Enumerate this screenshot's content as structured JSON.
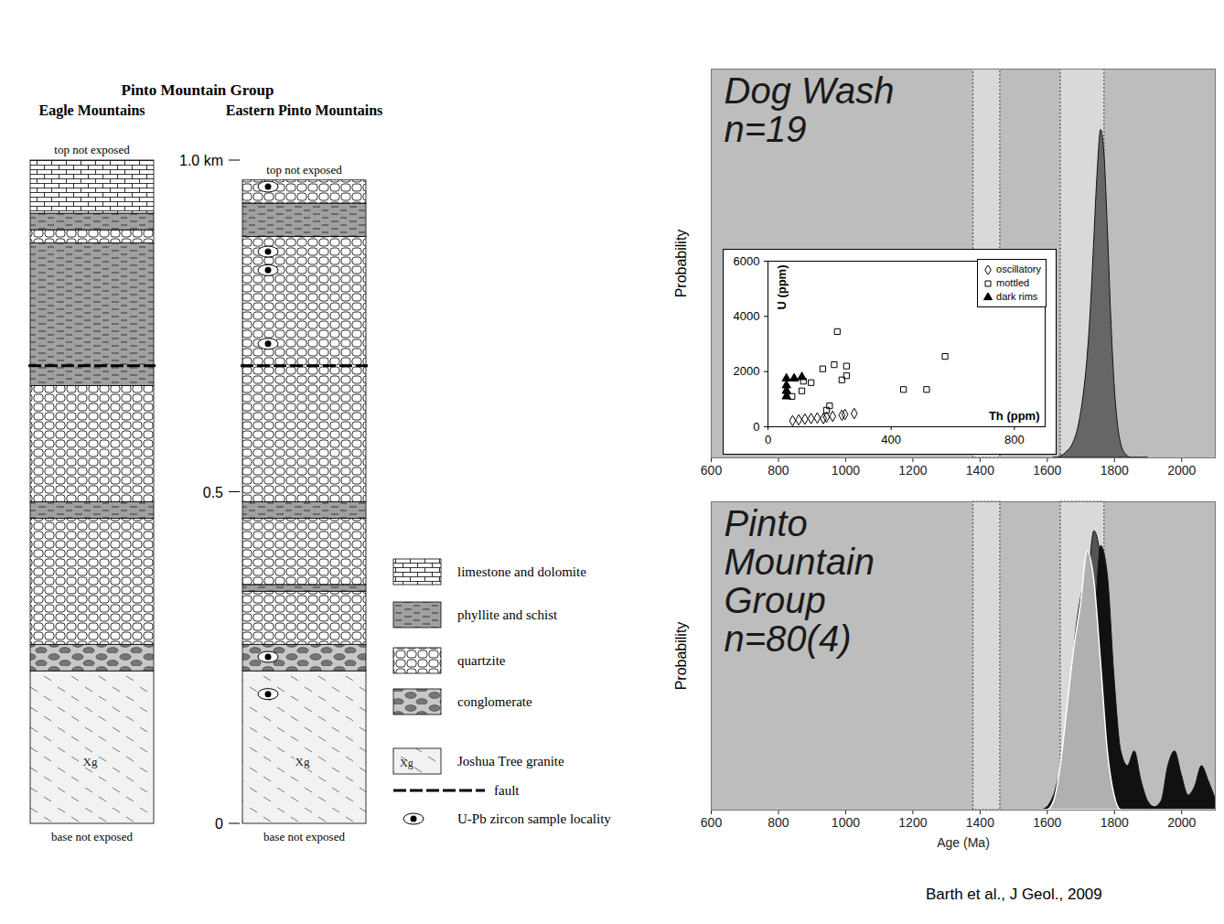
{
  "diagram": {
    "title": "Pinto Mountain Group",
    "ylim": [
      0,
      1.0
    ],
    "scale_ticks": [
      0,
      0.5,
      {
        "value": 1.0,
        "label": "1.0 km"
      }
    ],
    "columns": [
      {
        "name": "Eagle Mountains",
        "top_note": "top not exposed",
        "base_note": "base not exposed",
        "layers": [
          {
            "unit": "granite",
            "from": 0,
            "to": 0.23,
            "label": "Xg"
          },
          {
            "unit": "conglomerate",
            "from": 0.23,
            "to": 0.27
          },
          {
            "unit": "quartzite",
            "from": 0.27,
            "to": 0.46
          },
          {
            "unit": "phyllite",
            "from": 0.46,
            "to": 0.485
          },
          {
            "unit": "quartzite",
            "from": 0.485,
            "to": 0.66
          },
          {
            "unit": "phyllite",
            "from": 0.66,
            "to": 0.875
          },
          {
            "unit": "quartzite",
            "from": 0.875,
            "to": 0.895
          },
          {
            "unit": "phyllite",
            "from": 0.895,
            "to": 0.92
          },
          {
            "unit": "limestone",
            "from": 0.92,
            "to": 1.0
          }
        ],
        "faults": [
          0.69
        ],
        "samples": []
      },
      {
        "name": "Eastern Pinto Mountains",
        "top_note": "top not exposed",
        "base_note": "base not exposed",
        "layers": [
          {
            "unit": "granite",
            "from": 0,
            "to": 0.23,
            "label": "Xg"
          },
          {
            "unit": "conglomerate",
            "from": 0.23,
            "to": 0.27
          },
          {
            "unit": "quartzite",
            "from": 0.27,
            "to": 0.35
          },
          {
            "unit": "phyllite",
            "from": 0.35,
            "to": 0.36
          },
          {
            "unit": "quartzite",
            "from": 0.36,
            "to": 0.46
          },
          {
            "unit": "phyllite",
            "from": 0.46,
            "to": 0.485
          },
          {
            "unit": "quartzite",
            "from": 0.485,
            "to": 0.885
          },
          {
            "unit": "phyllite",
            "from": 0.885,
            "to": 0.935
          },
          {
            "unit": "quartzite",
            "from": 0.935,
            "to": 0.97
          }
        ],
        "faults": [
          0.69
        ],
        "samples": [
          0.96,
          0.862,
          0.834,
          0.723,
          0.251,
          0.195
        ]
      }
    ],
    "legend": [
      {
        "unit": "limestone",
        "label": "limestone and dolomite"
      },
      {
        "unit": "phyllite",
        "label": "phyllite and schist"
      },
      {
        "unit": "quartzite",
        "label": "quartzite"
      },
      {
        "unit": "conglomerate",
        "label": "conglomerate"
      },
      {
        "unit": "granite",
        "label": "Joshua Tree granite",
        "symbol": "Xg"
      },
      {
        "unit": "fault",
        "label": "fault"
      },
      {
        "unit": "sample",
        "label": "U-Pb zircon sample locality"
      }
    ]
  },
  "chart_data": [
    {
      "type": "area",
      "title": "Dog Wash",
      "subtitle": "n=19",
      "ylabel": "Probability",
      "xlim": [
        600,
        2100
      ],
      "xticks": [
        600,
        800,
        1000,
        1200,
        1400,
        1600,
        1800,
        2000
      ],
      "ylim": [
        0,
        1.15
      ],
      "tick_labels": "x",
      "highlight_ranges": [
        [
          1380,
          1460
        ],
        [
          1640,
          1770
        ]
      ],
      "color": "#666666",
      "x": [
        1620,
        1630,
        1640,
        1650,
        1660,
        1670,
        1680,
        1690,
        1700,
        1710,
        1720,
        1730,
        1740,
        1750,
        1760,
        1770,
        1780,
        1790,
        1800,
        1810,
        1820,
        1830,
        1840,
        1850,
        1860,
        1870,
        1880,
        1890,
        1900
      ],
      "values": [
        0,
        0,
        0.005,
        0.01,
        0.02,
        0.03,
        0.05,
        0.08,
        0.13,
        0.2,
        0.3,
        0.45,
        0.65,
        0.85,
        0.97,
        0.9,
        0.68,
        0.42,
        0.22,
        0.1,
        0.04,
        0.015,
        0.005,
        0,
        0,
        0,
        0,
        0,
        0
      ],
      "inset": {
        "type": "scatter",
        "xlabel": "Th (ppm)",
        "ylabel": "U (ppm)",
        "xlim": [
          0,
          900
        ],
        "xticks": [
          0,
          400,
          800
        ],
        "ylim": [
          0,
          6000
        ],
        "yticks": [
          0,
          2000,
          4000,
          6000
        ],
        "legend": "top-right",
        "series": [
          {
            "name": "oscillatory",
            "marker": "open diamond",
            "color": "#000000",
            "x": [
              80,
              100,
              120,
              140,
              160,
              180,
              190,
              210,
              240,
              250,
              280
            ],
            "values": [
              220,
              250,
              280,
              300,
              320,
              300,
              350,
              380,
              420,
              450,
              480
            ]
          },
          {
            "name": "mottled",
            "marker": "open square",
            "color": "#000000",
            "x": [
              575,
              225,
              215,
              178,
              140,
              110,
              78,
              240,
              200,
              440,
              515,
              115,
              255,
              255,
              190
            ],
            "values": [
              2550,
              3450,
              2250,
              2100,
              1600,
              1300,
              1100,
              1700,
              760,
              1350,
              1350,
              1650,
              2200,
              1850,
              600
            ]
          },
          {
            "name": "dark rims",
            "marker": "filled triangle",
            "color": "#000000",
            "x": [
              60,
              85,
              110,
              60,
              60,
              60
            ],
            "values": [
              1750,
              1750,
              1800,
              1500,
              1300,
              1100
            ]
          }
        ]
      }
    },
    {
      "type": "area",
      "title": "Pinto Mountain Group",
      "subtitle": "n=80(4)",
      "xlabel": "Age (Ma)",
      "ylabel": "Probability",
      "xlim": [
        600,
        2100
      ],
      "xticks": [
        600,
        800,
        1000,
        1200,
        1400,
        1600,
        1800,
        2000
      ],
      "ylim": [
        0,
        1.05
      ],
      "tick_labels": "x",
      "highlight_ranges": [
        [
          1380,
          1460
        ],
        [
          1640,
          1770
        ]
      ],
      "x": [
        1560,
        1580,
        1600,
        1620,
        1640,
        1660,
        1680,
        1700,
        1720,
        1740,
        1760,
        1780,
        1800,
        1820,
        1840,
        1860,
        1880,
        1900,
        1920,
        1940,
        1960,
        1980,
        2000,
        2020,
        2040,
        2060,
        2080,
        2100
      ],
      "series": [
        {
          "color": "#555555",
          "values": [
            0,
            0,
            0,
            0.02,
            0.08,
            0.2,
            0.4,
            0.6,
            0.75,
            0.95,
            0.85,
            0.5,
            0.2,
            0.05,
            0,
            0,
            0,
            0,
            0,
            0,
            0,
            0,
            0,
            0,
            0,
            0,
            0,
            0
          ]
        },
        {
          "color": "#888888",
          "values": [
            0,
            0,
            0,
            0,
            0.05,
            0.25,
            0.55,
            0.72,
            0.8,
            0.7,
            0.45,
            0.2,
            0.05,
            0,
            0,
            0,
            0,
            0,
            0,
            0,
            0,
            0,
            0,
            0,
            0,
            0,
            0,
            0
          ]
        },
        {
          "color": "#111111",
          "values": [
            0,
            0,
            0.01,
            0.05,
            0.12,
            0.1,
            0.3,
            0.6,
            0.78,
            0.65,
            0.9,
            0.8,
            0.45,
            0.2,
            0.15,
            0.2,
            0.1,
            0.03,
            0.01,
            0.03,
            0.15,
            0.2,
            0.12,
            0.05,
            0.08,
            0.15,
            0.1,
            0.04
          ]
        },
        {
          "color": "#b0b0b0",
          "values": [
            0,
            0,
            0,
            0.03,
            0.15,
            0.35,
            0.55,
            0.7,
            0.88,
            0.78,
            0.5,
            0.2,
            0.05,
            0,
            0,
            0,
            0,
            0,
            0,
            0,
            0,
            0,
            0,
            0,
            0,
            0,
            0,
            0
          ]
        }
      ]
    }
  ],
  "citation": "Barth et al., J Geol., 2009"
}
